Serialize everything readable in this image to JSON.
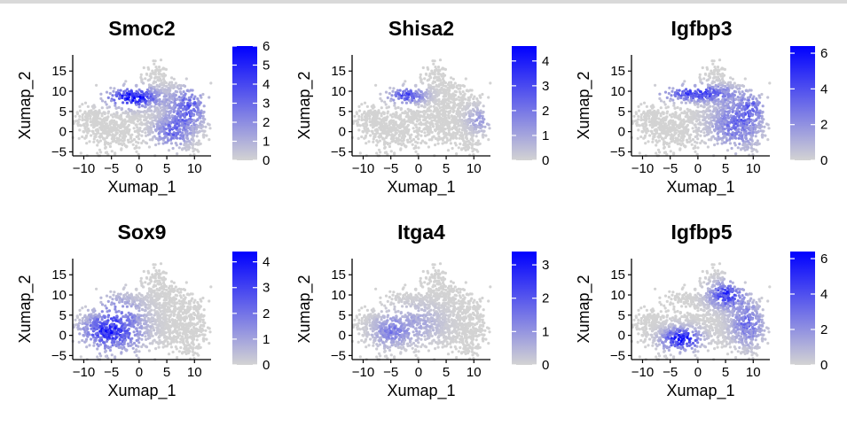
{
  "colors": {
    "low": "#d3d3d3",
    "high": "#0000ff",
    "points": "#d5d5d5",
    "axis": "#000000"
  },
  "chart_data": [
    {
      "type": "scatter",
      "title": "Smoc2",
      "xlabel": "Xumap_1",
      "ylabel": "Xumap_2",
      "xlim": [
        -12,
        13
      ],
      "ylim": [
        -6,
        19
      ],
      "xticks": [
        "−10",
        "−5",
        "0",
        "5",
        "10"
      ],
      "yticks": [
        "−5",
        "0",
        "5",
        "10",
        "15"
      ],
      "color_scale": {
        "min": 0,
        "max": 6,
        "ticks": [
          "0",
          "1",
          "2",
          "3",
          "4",
          "5",
          "6"
        ]
      },
      "hotspots": [
        {
          "x": -1,
          "y": 8.5,
          "sx": 3.0,
          "sy": 1.6,
          "w": 1.0
        },
        {
          "x": 9,
          "y": 6,
          "sx": 2.2,
          "sy": 3.0,
          "w": 0.6
        },
        {
          "x": 6,
          "y": 0,
          "sx": 2.2,
          "sy": 2.5,
          "w": 0.5
        }
      ]
    },
    {
      "type": "scatter",
      "title": "Shisa2",
      "xlabel": "Xumap_1",
      "ylabel": "Xumap_2",
      "xlim": [
        -12,
        13
      ],
      "ylim": [
        -6,
        19
      ],
      "xticks": [
        "−10",
        "−5",
        "0",
        "5",
        "10"
      ],
      "yticks": [
        "−5",
        "0",
        "5",
        "10",
        "15"
      ],
      "color_scale": {
        "min": 0,
        "max": 4.6,
        "ticks": [
          "0",
          "1",
          "2",
          "3",
          "4"
        ]
      },
      "hotspots": [
        {
          "x": -2,
          "y": 9,
          "sx": 2.2,
          "sy": 1.3,
          "w": 0.7
        },
        {
          "x": 11,
          "y": 3,
          "sx": 1.5,
          "sy": 2.0,
          "w": 0.3
        }
      ]
    },
    {
      "type": "scatter",
      "title": "Igfbp3",
      "xlabel": "Xumap_1",
      "ylabel": "Xumap_2",
      "xlim": [
        -12,
        13
      ],
      "ylim": [
        -6,
        19
      ],
      "xticks": [
        "−10",
        "−5",
        "0",
        "5",
        "10"
      ],
      "yticks": [
        "−5",
        "0",
        "5",
        "10",
        "15"
      ],
      "color_scale": {
        "min": 0,
        "max": 6.4,
        "ticks": [
          "0",
          "2",
          "4",
          "6"
        ]
      },
      "hotspots": [
        {
          "x": 0,
          "y": 9.5,
          "sx": 4.0,
          "sy": 1.3,
          "w": 0.8
        },
        {
          "x": 7,
          "y": 2,
          "sx": 3.0,
          "sy": 4.0,
          "w": 0.5
        },
        {
          "x": 10,
          "y": 6,
          "sx": 1.6,
          "sy": 2.0,
          "w": 0.4
        }
      ]
    },
    {
      "type": "scatter",
      "title": "Sox9",
      "xlabel": "Xumap_1",
      "ylabel": "Xumap_2",
      "xlim": [
        -12,
        13
      ],
      "ylim": [
        -6,
        19
      ],
      "xticks": [
        "−10",
        "−5",
        "0",
        "5",
        "10"
      ],
      "yticks": [
        "−5",
        "0",
        "5",
        "10",
        "15"
      ],
      "color_scale": {
        "min": 0,
        "max": 4.4,
        "ticks": [
          "0",
          "1",
          "2",
          "3",
          "4"
        ]
      },
      "hotspots": [
        {
          "x": -4,
          "y": 2,
          "sx": 3.2,
          "sy": 4.5,
          "w": 0.6
        },
        {
          "x": -7,
          "y": 1,
          "sx": 2.5,
          "sy": 2.0,
          "w": 0.4
        }
      ]
    },
    {
      "type": "scatter",
      "title": "Itga4",
      "xlabel": "Xumap_1",
      "ylabel": "Xumap_2",
      "xlim": [
        -12,
        13
      ],
      "ylim": [
        -6,
        19
      ],
      "xticks": [
        "−10",
        "−5",
        "0",
        "5",
        "10"
      ],
      "yticks": [
        "−5",
        "0",
        "5",
        "10",
        "15"
      ],
      "color_scale": {
        "min": 0,
        "max": 3.4,
        "ticks": [
          "0",
          "1",
          "2",
          "3"
        ]
      },
      "hotspots": [
        {
          "x": -5,
          "y": 1,
          "sx": 2.2,
          "sy": 2.5,
          "w": 0.4
        },
        {
          "x": 0,
          "y": 3,
          "sx": 3.0,
          "sy": 3.0,
          "w": 0.2
        }
      ]
    },
    {
      "type": "scatter",
      "title": "Igfbp5",
      "xlabel": "Xumap_1",
      "ylabel": "Xumap_2",
      "xlim": [
        -12,
        13
      ],
      "ylim": [
        -6,
        19
      ],
      "xticks": [
        "−10",
        "−5",
        "0",
        "5",
        "10"
      ],
      "yticks": [
        "−5",
        "0",
        "5",
        "10",
        "15"
      ],
      "color_scale": {
        "min": 0,
        "max": 6.4,
        "ticks": [
          "0",
          "2",
          "4",
          "6"
        ]
      },
      "hotspots": [
        {
          "x": -3,
          "y": -1,
          "sx": 2.2,
          "sy": 1.8,
          "w": 1.0
        },
        {
          "x": 5,
          "y": 10,
          "sx": 2.0,
          "sy": 2.0,
          "w": 0.8
        },
        {
          "x": 9,
          "y": 3,
          "sx": 2.0,
          "sy": 3.5,
          "w": 0.5
        }
      ]
    }
  ]
}
